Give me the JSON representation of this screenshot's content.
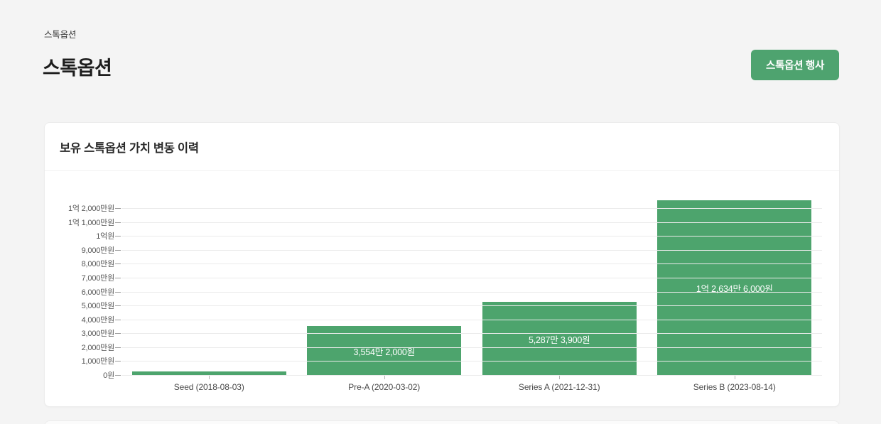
{
  "page": {
    "breadcrumb": "스톡옵션",
    "title": "스톡옵션",
    "action_button_label": "스톡옵션 행사"
  },
  "card": {
    "title": "보유 스톡옵션 가치 변동 이력"
  },
  "colors": {
    "page_background": "#f4f4f4",
    "card_background": "#ffffff",
    "accent_green": "#4DA46D",
    "button_green": "#4EA36F",
    "grid_line": "#ebebeb",
    "bar_label_text": "#ffffff"
  },
  "chart_data": {
    "type": "bar",
    "title": "보유 스톡옵션 가치 변동 이력",
    "xlabel": "",
    "ylabel": "",
    "legend": "none",
    "grid": "horizontal",
    "bar_color": "#4DA46D",
    "categories": [
      "Seed (2018-08-03)",
      "Pre-A (2020-03-02)",
      "Series A (2021-12-31)",
      "Series B (2023-08-14)"
    ],
    "values": [
      3000000,
      35542000,
      52873900,
      126346000
    ],
    "bar_labels": [
      "",
      "3,554만 2,000원",
      "5,287만 3,900원",
      "1억 2,634만 6,000원"
    ],
    "y_ticks": [
      {
        "value": 0,
        "label": "0원"
      },
      {
        "value": 10000000,
        "label": "1,000만원"
      },
      {
        "value": 20000000,
        "label": "2,000만원"
      },
      {
        "value": 30000000,
        "label": "3,000만원"
      },
      {
        "value": 40000000,
        "label": "4,000만원"
      },
      {
        "value": 50000000,
        "label": "5,000만원"
      },
      {
        "value": 60000000,
        "label": "6,000만원"
      },
      {
        "value": 70000000,
        "label": "7,000만원"
      },
      {
        "value": 80000000,
        "label": "8,000만원"
      },
      {
        "value": 90000000,
        "label": "9,000만원"
      },
      {
        "value": 100000000,
        "label": "1억원"
      },
      {
        "value": 110000000,
        "label": "1억 1,000만원"
      },
      {
        "value": 120000000,
        "label": "1억 2,000만원"
      }
    ],
    "ylim": [
      0,
      129200000
    ]
  }
}
